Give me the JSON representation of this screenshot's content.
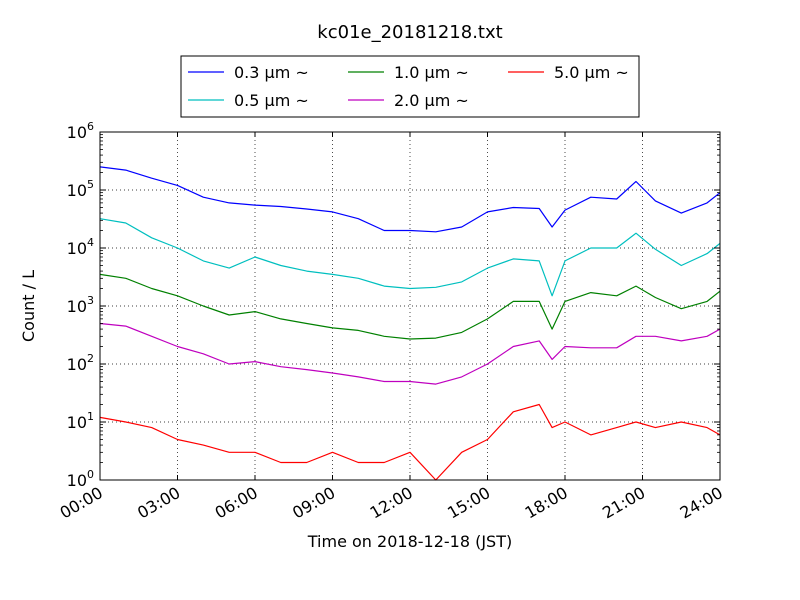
{
  "chart_data": {
    "type": "line",
    "title": "kc01e_20181218.txt",
    "xlabel": "Time on 2018-12-18 (JST)",
    "ylabel": "Count / L",
    "yscale": "log",
    "xlim": [
      "00:00",
      "24:00"
    ],
    "ylim": [
      1,
      1000000
    ],
    "grid": true,
    "legend_position": "top-center-outside",
    "x_ticks": [
      "00:00",
      "03:00",
      "06:00",
      "09:00",
      "12:00",
      "15:00",
      "18:00",
      "21:00",
      "24:00"
    ],
    "y_ticks": [
      {
        "base": "10",
        "exp": "0"
      },
      {
        "base": "10",
        "exp": "1"
      },
      {
        "base": "10",
        "exp": "2"
      },
      {
        "base": "10",
        "exp": "3"
      },
      {
        "base": "10",
        "exp": "4"
      },
      {
        "base": "10",
        "exp": "5"
      },
      {
        "base": "10",
        "exp": "6"
      }
    ],
    "x": [
      "00:00",
      "01:00",
      "02:00",
      "03:00",
      "04:00",
      "05:00",
      "06:00",
      "07:00",
      "08:00",
      "09:00",
      "10:00",
      "11:00",
      "12:00",
      "13:00",
      "14:00",
      "15:00",
      "16:00",
      "17:00",
      "17:30",
      "18:00",
      "19:00",
      "20:00",
      "20:45",
      "21:30",
      "22:30",
      "23:30",
      "24:00"
    ],
    "series": [
      {
        "name": "0.3 μm ~",
        "color": "#0000ff",
        "values": [
          250000,
          220000,
          160000,
          120000,
          75000,
          60000,
          55000,
          52000,
          47000,
          42000,
          32000,
          20000,
          20000,
          19000,
          23000,
          42000,
          50000,
          48000,
          23000,
          45000,
          75000,
          70000,
          140000,
          65000,
          40000,
          60000,
          90000
        ]
      },
      {
        "name": "0.5 μm ~",
        "color": "#00bfbf",
        "values": [
          32000,
          27000,
          15000,
          10000,
          6000,
          4500,
          7000,
          5000,
          4000,
          3500,
          3000,
          2200,
          2000,
          2100,
          2600,
          4500,
          6500,
          6000,
          1500,
          6000,
          10000,
          10000,
          18000,
          9500,
          5000,
          8000,
          12000
        ]
      },
      {
        "name": "1.0 μm ~",
        "color": "#008000",
        "values": [
          3500,
          3000,
          2000,
          1500,
          1000,
          700,
          800,
          600,
          500,
          420,
          380,
          300,
          270,
          280,
          350,
          600,
          1200,
          1200,
          400,
          1200,
          1700,
          1500,
          2200,
          1400,
          900,
          1200,
          1800
        ]
      },
      {
        "name": "2.0 μm ~",
        "color": "#bf00bf",
        "values": [
          500,
          450,
          300,
          200,
          150,
          100,
          110,
          90,
          80,
          70,
          60,
          50,
          50,
          45,
          60,
          100,
          200,
          250,
          120,
          200,
          190,
          190,
          300,
          300,
          250,
          300,
          400
        ]
      },
      {
        "name": "5.0 μm ~",
        "color": "#ff0000",
        "values": [
          12,
          10,
          8,
          5,
          4,
          3,
          3,
          2,
          2,
          3,
          2,
          2,
          3,
          1,
          3,
          5,
          15,
          20,
          8,
          10,
          6,
          8,
          10,
          8,
          10,
          8,
          6
        ]
      }
    ]
  }
}
